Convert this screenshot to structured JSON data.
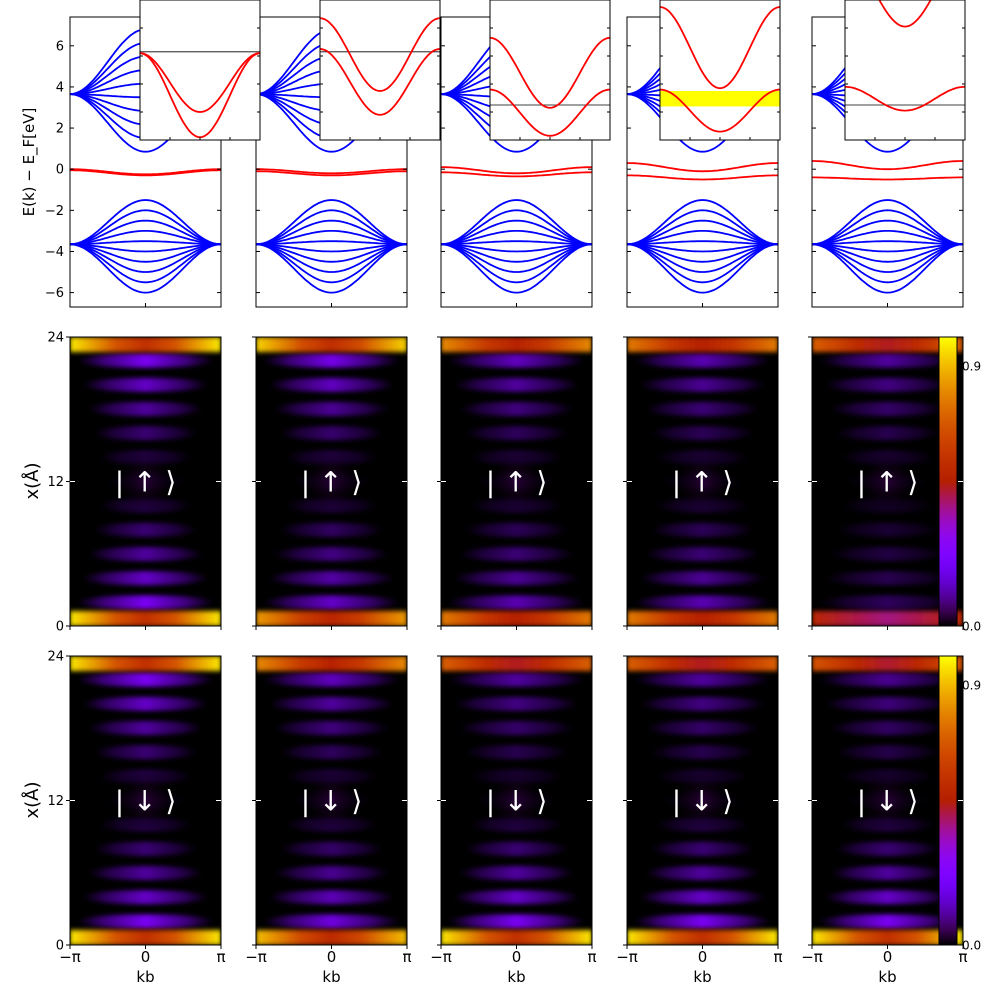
{
  "chart_data": {
    "type": "multi-panel",
    "columns": 5,
    "band_structure": {
      "ylabel": "E(k) − E_F[eV]",
      "ylim": [
        -6.7,
        7.4
      ],
      "yticks": [
        "6",
        "4",
        "2",
        "0",
        "−2",
        "−4",
        "−6"
      ],
      "ytick_values": [
        6,
        4,
        2,
        0,
        -2,
        -4,
        -6
      ],
      "bulk_color": "#0000ff",
      "edge_color": "#ff0000",
      "conduction_bands": {
        "edge_value": 3.65,
        "center_max": 6.8,
        "center_min": 0.85,
        "count": 10
      },
      "valence_bands": {
        "edge_value": -3.65,
        "center_max": -1.5,
        "center_min": -6.0,
        "count": 10
      },
      "edge_states": [
        {
          "panel": 1,
          "upper": {
            "edge": 0.0,
            "center": -0.25
          },
          "lower": {
            "edge": -0.05,
            "center": -0.3
          }
        },
        {
          "panel": 2,
          "upper": {
            "edge": 0.0,
            "center": -0.2
          },
          "lower": {
            "edge": -0.1,
            "center": -0.3
          }
        },
        {
          "panel": 3,
          "upper": {
            "edge": 0.1,
            "center": -0.2
          },
          "lower": {
            "edge": -0.15,
            "center": -0.35
          }
        },
        {
          "panel": 4,
          "upper": {
            "edge": 0.3,
            "center": -0.1
          },
          "lower": {
            "edge": -0.3,
            "center": -0.5
          }
        },
        {
          "panel": 5,
          "upper": {
            "edge": 0.4,
            "center": 0.0
          },
          "lower": {
            "edge": -0.4,
            "center": -0.5
          }
        }
      ]
    },
    "insets": [
      {
        "panel": 1,
        "fermi_line": 0.37,
        "curves": [
          {
            "edge": 0.38,
            "center": 0.8
          },
          {
            "edge": 0.38,
            "center": 0.98
          }
        ],
        "gap_band": null
      },
      {
        "panel": 2,
        "fermi_line": 0.37,
        "curves": [
          {
            "edge": 0.13,
            "center": 0.65
          },
          {
            "edge": 0.35,
            "center": 0.82
          }
        ],
        "gap_band": null
      },
      {
        "panel": 3,
        "fermi_line": 0.75,
        "curves": [
          {
            "edge": 0.27,
            "center": 0.77
          },
          {
            "edge": 0.64,
            "center": 0.97
          }
        ],
        "gap_band": null
      },
      {
        "panel": 4,
        "fermi_line": null,
        "curves": [
          {
            "edge": 0.05,
            "center": 0.63
          },
          {
            "edge": 0.64,
            "center": 0.94
          }
        ],
        "gap_band": [
          0.65,
          0.76
        ]
      },
      {
        "panel": 5,
        "fermi_line": 0.75,
        "curves": [
          {
            "edge": -0.3,
            "center": 0.19
          },
          {
            "edge": 0.62,
            "center": 0.79
          }
        ],
        "gap_band": null
      }
    ],
    "density_maps": {
      "ylabel": "x(Å)",
      "ylim": [
        0,
        24
      ],
      "yticks": [
        "24",
        "12",
        "0"
      ],
      "ytick_values": [
        24,
        12,
        0
      ],
      "xlabel": "kb",
      "xticks": [
        "−π",
        "0",
        "π"
      ],
      "colormap": "gnuplot",
      "colorbar_ticks": [
        "0.9",
        "0.0"
      ],
      "colorbar_values": [
        0.9,
        0.0
      ],
      "rows": [
        {
          "label": "| ↑ ⟩",
          "hot_edge": "both"
        },
        {
          "label": "| ↓ ⟩",
          "hot_edge": "both"
        }
      ],
      "top_edge_weight": [
        [
          1.0,
          0.95,
          0.75,
          0.7,
          0.6
        ],
        [
          1.0,
          0.75,
          0.6,
          0.6,
          0.55
        ]
      ],
      "bottom_edge_weight": [
        [
          1.0,
          0.8,
          0.7,
          0.7,
          0.3
        ],
        [
          1.0,
          0.9,
          1.0,
          1.0,
          1.0
        ]
      ]
    }
  }
}
